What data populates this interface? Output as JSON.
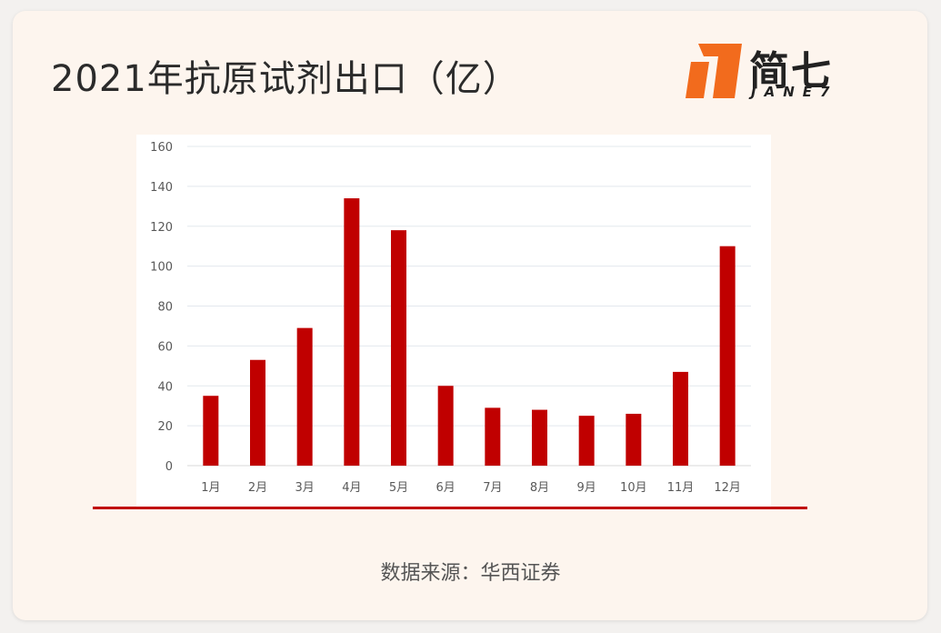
{
  "header": {
    "title": "2021年抗原试剂出口（亿）"
  },
  "logo": {
    "name_cn": "简七",
    "name_en": "JANE7",
    "accent_color": "#f26b1d"
  },
  "footer": {
    "source": "数据来源：华西证券"
  },
  "chart_data": {
    "type": "bar",
    "categories": [
      "1月",
      "2月",
      "3月",
      "4月",
      "5月",
      "6月",
      "7月",
      "8月",
      "9月",
      "10月",
      "11月",
      "12月"
    ],
    "values": [
      35,
      53,
      69,
      134,
      118,
      40,
      29,
      28,
      25,
      26,
      47,
      110
    ],
    "title": "2021年抗原试剂出口（亿）",
    "xlabel": "",
    "ylabel": "",
    "ylim": [
      0,
      160
    ],
    "yticks": [
      0,
      20,
      40,
      60,
      80,
      100,
      120,
      140,
      160
    ],
    "grid": true,
    "legend": "none",
    "bar_color": "#c00000"
  }
}
